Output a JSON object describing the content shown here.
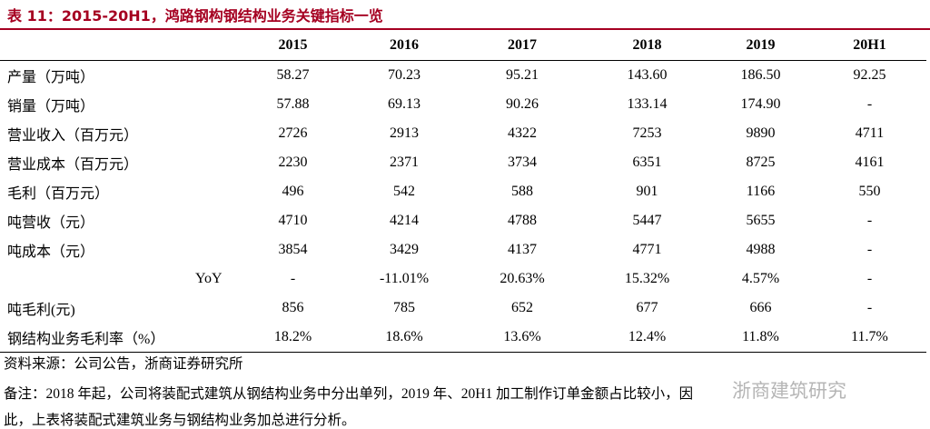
{
  "title": "表 11：2015-20H1，鸿路钢构钢结构业务关键指标一览",
  "table": {
    "columns": [
      "2015",
      "2016",
      "2017",
      "2018",
      "2019",
      "20H1"
    ],
    "rows": [
      [
        "产量（万吨）",
        "58.27",
        "70.23",
        "95.21",
        "143.60",
        "186.50",
        "92.25"
      ],
      [
        "销量（万吨）",
        "57.88",
        "69.13",
        "90.26",
        "133.14",
        "174.90",
        "-"
      ],
      [
        "营业收入（百万元）",
        "2726",
        "2913",
        "4322",
        "7253",
        "9890",
        "4711"
      ],
      [
        "营业成本（百万元）",
        "2230",
        "2371",
        "3734",
        "6351",
        "8725",
        "4161"
      ],
      [
        "毛利（百万元）",
        "496",
        "542",
        "588",
        "901",
        "1166",
        "550"
      ],
      [
        "吨营收（元）",
        "4710",
        "4214",
        "4788",
        "5447",
        "5655",
        "-"
      ],
      [
        "吨成本（元）",
        "3854",
        "3429",
        "4137",
        "4771",
        "4988",
        "-"
      ],
      [
        "YoY",
        "-",
        "-11.01%",
        "20.63%",
        "15.32%",
        "4.57%",
        "-"
      ],
      [
        "吨毛利(元)",
        "856",
        "785",
        "652",
        "677",
        "666",
        "-"
      ],
      [
        "钢结构业务毛利率（%）",
        "18.2%",
        "18.6%",
        "13.6%",
        "12.4%",
        "11.8%",
        "11.7%"
      ]
    ]
  },
  "source": "资料来源：公司公告，浙商证券研究所",
  "note": [
    "备注：2018 年起，公司将装配式建筑从钢结构业务中分出单列，2019 年、20H1 加工制作订单金额占比较小，因",
    "此，上表将装配式建筑业务与钢结构业务加总进行分析。"
  ],
  "watermark": "浙商建筑研究"
}
